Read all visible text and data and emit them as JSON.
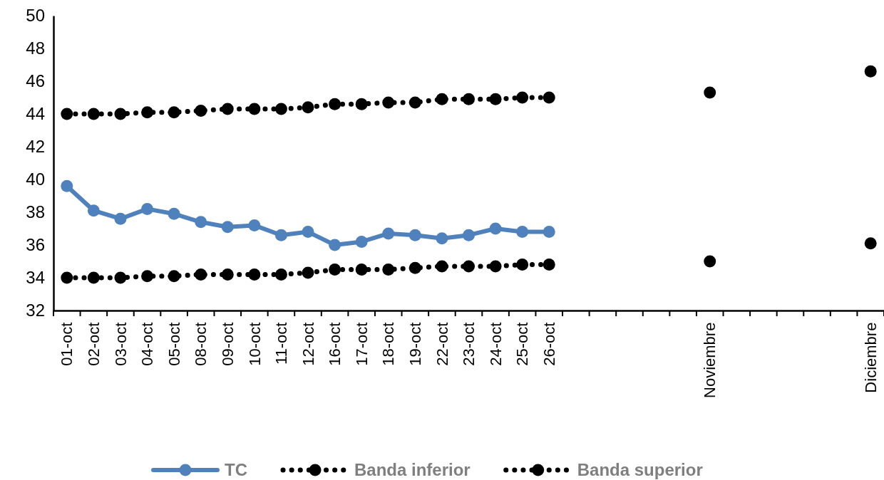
{
  "chart_data": {
    "type": "line",
    "categories": [
      "01-oct",
      "02-oct",
      "03-oct",
      "04-oct",
      "05-oct",
      "08-oct",
      "09-oct",
      "10-oct",
      "11-oct",
      "12-oct",
      "16-oct",
      "17-oct",
      "18-oct",
      "19-oct",
      "22-oct",
      "23-oct",
      "24-oct",
      "25-oct",
      "26-oct",
      null,
      null,
      null,
      null,
      null,
      "Noviembre",
      null,
      null,
      null,
      null,
      null,
      "Diciembre"
    ],
    "series": [
      {
        "name": "TC",
        "color": "#4f81bd",
        "line_style": "solid",
        "values": [
          39.6,
          38.1,
          37.6,
          38.2,
          37.9,
          37.4,
          37.1,
          37.2,
          36.6,
          36.8,
          36.0,
          36.2,
          36.7,
          36.6,
          36.4,
          36.6,
          37.0,
          36.8,
          36.8,
          null,
          null,
          null,
          null,
          null,
          null,
          null,
          null,
          null,
          null,
          null,
          null
        ]
      },
      {
        "name": "Banda inferior",
        "color": "#000000",
        "line_style": "dotted",
        "values": [
          34.0,
          34.0,
          34.0,
          34.1,
          34.1,
          34.2,
          34.2,
          34.2,
          34.2,
          34.3,
          34.5,
          34.5,
          34.5,
          34.6,
          34.7,
          34.7,
          34.7,
          34.8,
          34.8,
          null,
          null,
          null,
          null,
          null,
          35.0,
          null,
          null,
          null,
          null,
          null,
          36.1
        ]
      },
      {
        "name": "Banda superior",
        "color": "#000000",
        "line_style": "dotted",
        "values": [
          44.0,
          44.0,
          44.0,
          44.1,
          44.1,
          44.2,
          44.3,
          44.3,
          44.3,
          44.4,
          44.6,
          44.6,
          44.7,
          44.7,
          44.9,
          44.9,
          44.9,
          45.0,
          45.0,
          null,
          null,
          null,
          null,
          null,
          45.3,
          null,
          null,
          null,
          null,
          null,
          46.6
        ]
      }
    ],
    "ylim": [
      32,
      50
    ],
    "yticks": [
      32,
      34,
      36,
      38,
      40,
      42,
      44,
      46,
      48,
      50
    ],
    "marker": "circle",
    "grid": false,
    "legend": "bottom"
  }
}
